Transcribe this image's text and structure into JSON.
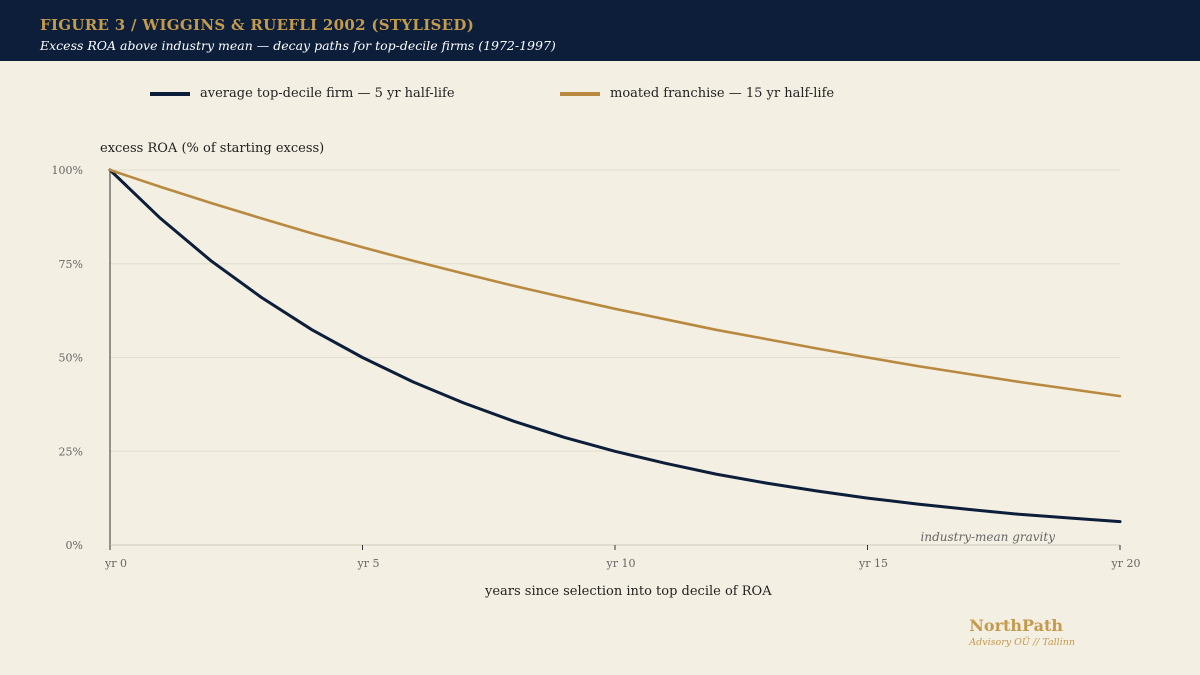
{
  "header": {
    "title": "FIGURE 3 / WIGGINS & RUEFLI 2002 (STYLISED)",
    "subtitle": "Excess ROA above industry mean — decay paths for top-decile firms (1972-1997)"
  },
  "chart_data": {
    "type": "line",
    "title": "FIGURE 3 / WIGGINS & RUEFLI 2002 (STYLISED)",
    "subtitle": "Excess ROA above industry mean — decay paths for top-decile firms (1972-1997)",
    "xlabel": "years since selection into top decile of ROA",
    "ylabel": "excess ROA (% of starting excess)",
    "xlim": [
      0,
      20
    ],
    "ylim": [
      0,
      100
    ],
    "x_ticks": [
      0,
      5,
      10,
      15,
      20
    ],
    "x_tick_labels": [
      "yr 0",
      "yr 5",
      "yr 10",
      "yr 15",
      "yr 20"
    ],
    "y_ticks": [
      0,
      25,
      50,
      75,
      100
    ],
    "y_tick_labels": [
      "0%",
      "25%",
      "50%",
      "75%",
      "100%"
    ],
    "grid": "horizontal",
    "legend_position": "top",
    "x": [
      0,
      1,
      2,
      3,
      4,
      5,
      6,
      7,
      8,
      9,
      10,
      11,
      12,
      13,
      14,
      15,
      16,
      17,
      18,
      19,
      20
    ],
    "series": [
      {
        "name": "average top-decile firm — 5 yr half-life",
        "color": "#0c1e3a",
        "values": [
          100,
          87.1,
          75.8,
          66.0,
          57.4,
          50.0,
          43.5,
          37.9,
          33.0,
          28.7,
          25.0,
          21.8,
          18.9,
          16.5,
          14.4,
          12.5,
          10.9,
          9.5,
          8.2,
          7.2,
          6.25
        ]
      },
      {
        "name": "moated franchise — 15 yr half-life",
        "color": "#b8893f",
        "values": [
          100,
          95.5,
          91.2,
          87.1,
          83.1,
          79.4,
          75.8,
          72.4,
          69.1,
          66.0,
          63.0,
          60.2,
          57.4,
          54.9,
          52.4,
          50.0,
          47.7,
          45.6,
          43.5,
          41.6,
          39.7
        ]
      }
    ],
    "annotations": [
      "industry-mean gravity"
    ]
  },
  "brand": {
    "name": "NorthPath",
    "sub": "Advisory OÜ // Tallinn"
  }
}
